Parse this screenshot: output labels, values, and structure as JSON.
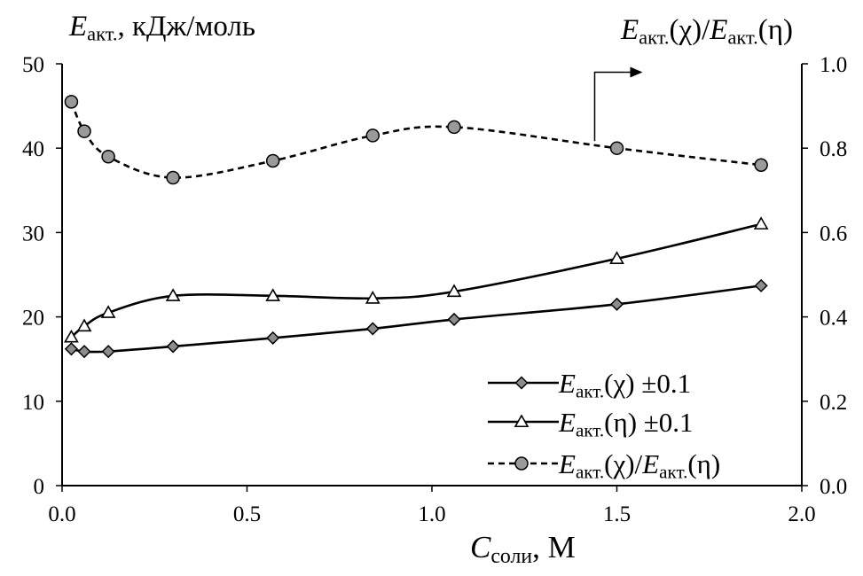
{
  "chart_data": {
    "type": "line",
    "y_axis": {
      "symbol": "E",
      "subscript": "акт.",
      "label_rest": ", кДж/моль",
      "range": [
        0,
        50
      ],
      "ticks": [
        "0",
        "10",
        "20",
        "30",
        "40",
        "50"
      ]
    },
    "y2_axis": {
      "symbol1": "E",
      "subscript1": "акт.",
      "mid": "(χ)/",
      "symbol2": "E",
      "subscript2": "акт.",
      "tail": "(η)",
      "range": [
        0,
        1
      ],
      "ticks": [
        "0.0",
        "0.2",
        "0.4",
        "0.6",
        "0.8",
        "1.0"
      ]
    },
    "x_axis": {
      "symbol": "C",
      "subscript": "соли",
      "label_rest": ", М",
      "range": [
        0,
        2
      ],
      "ticks": [
        "0.0",
        "0.5",
        "1.0",
        "1.5",
        "2.0"
      ]
    },
    "series": [
      {
        "id": "chi",
        "axis": "left",
        "marker": "diamond",
        "dash": false,
        "legend": {
          "symbol": "E",
          "subscript": "акт.",
          "rest": "(χ) ±0.1"
        },
        "x": [
          0.025,
          0.06,
          0.125,
          0.3,
          0.57,
          0.84,
          1.06,
          1.5,
          1.89
        ],
        "y": [
          16.2,
          15.9,
          15.9,
          16.5,
          17.5,
          18.6,
          19.7,
          21.5,
          23.7
        ]
      },
      {
        "id": "eta",
        "axis": "left",
        "marker": "triangle",
        "dash": false,
        "legend": {
          "symbol": "E",
          "subscript": "акт.",
          "rest": "(η) ±0.1"
        },
        "x": [
          0.025,
          0.06,
          0.125,
          0.3,
          0.57,
          0.84,
          1.06,
          1.5,
          1.89
        ],
        "y": [
          17.6,
          18.9,
          20.5,
          22.5,
          22.5,
          22.2,
          23.0,
          26.9,
          31.0
        ]
      },
      {
        "id": "ratio",
        "axis": "right",
        "marker": "circle",
        "dash": true,
        "legend": {
          "symbol": "E",
          "subscript": "акт.",
          "mid": "(χ)/",
          "symbol2": "E",
          "subscript2": "акт.",
          "rest": "(η)"
        },
        "x": [
          0.025,
          0.06,
          0.125,
          0.3,
          0.57,
          0.84,
          1.06,
          1.5,
          1.89
        ],
        "y": [
          0.91,
          0.84,
          0.78,
          0.73,
          0.77,
          0.83,
          0.85,
          0.8,
          0.76
        ]
      }
    ]
  }
}
